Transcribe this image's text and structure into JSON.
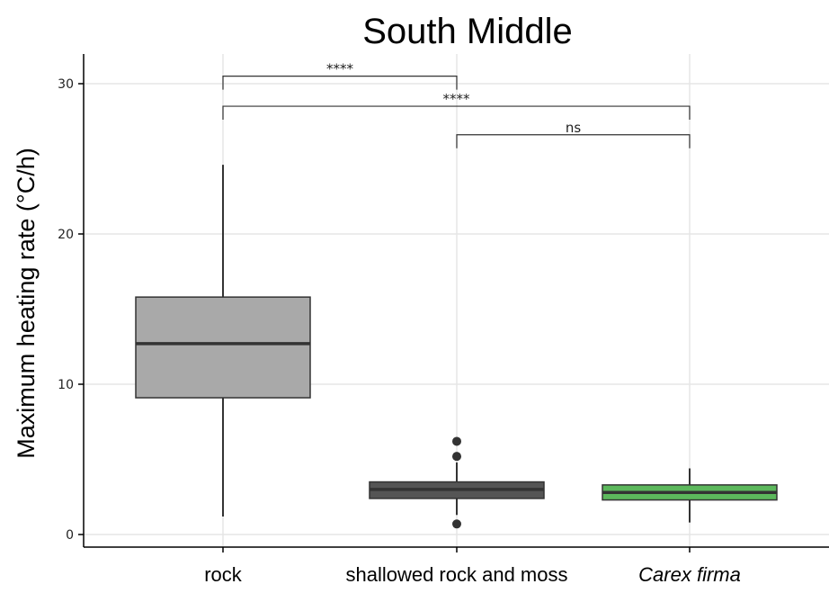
{
  "chart_data": {
    "type": "box",
    "title": "South Middle",
    "xlabel": "",
    "ylabel": "Maximum heating rate (°C/h)",
    "ylim": [
      -1,
      32
    ],
    "yticks": [
      0,
      10,
      20,
      30
    ],
    "grid": true,
    "categories": [
      "rock",
      "shallowed rock and moss",
      "Carex firma"
    ],
    "boxes": [
      {
        "category": "rock",
        "whisker_low": 1.2,
        "q1": 9.1,
        "median": 12.7,
        "q3": 15.8,
        "whisker_high": 24.6,
        "outliers": [],
        "fill": "#a9a9a9"
      },
      {
        "category": "shallowed rock and moss",
        "whisker_low": 1.3,
        "q1": 2.4,
        "median": 3.0,
        "q3": 3.5,
        "whisker_high": 4.8,
        "outliers": [
          0.7,
          5.2,
          6.2
        ],
        "fill": "#555555"
      },
      {
        "category": "Carex firma",
        "whisker_low": 0.8,
        "q1": 2.3,
        "median": 2.8,
        "q3": 3.3,
        "whisker_high": 4.4,
        "outliers": [],
        "fill": "#5cb85c"
      }
    ],
    "comparisons": [
      {
        "from": "rock",
        "to": "shallowed rock and moss",
        "label": "****",
        "y": 30.5
      },
      {
        "from": "rock",
        "to": "Carex firma",
        "label": "****",
        "y": 28.5
      },
      {
        "from": "shallowed rock and moss",
        "to": "Carex firma",
        "label": "ns",
        "y": 26.6
      }
    ],
    "colors": {
      "grid": "#e5e5e5",
      "axis": "#000000",
      "box_stroke": "#333333"
    }
  }
}
